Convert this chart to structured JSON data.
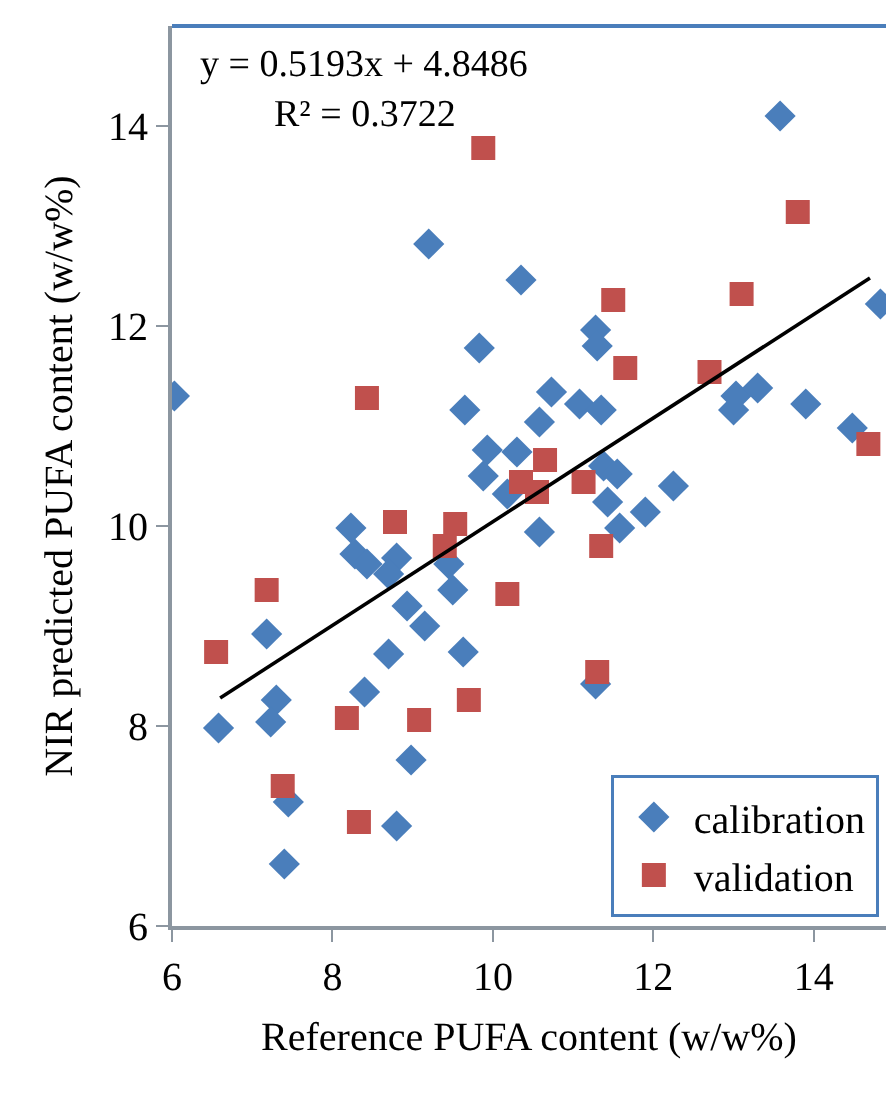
{
  "chart_data": {
    "type": "scatter",
    "xlabel": "Reference PUFA content (w/w%)",
    "ylabel": "NIR predicted PUFA content (w/w%)",
    "xlim": [
      6,
      14.9
    ],
    "ylim": [
      6,
      15
    ],
    "xticks": [
      6,
      8,
      10,
      12,
      14
    ],
    "yticks": [
      6,
      8,
      10,
      12,
      14
    ],
    "grid": false,
    "legend": "bottom right",
    "annotations": [
      "y = 0.5193x + 4.8486",
      "R² = 0.3722"
    ],
    "series": [
      {
        "name": "calibration",
        "color": "#4a7ebb",
        "marker": "diamond",
        "x": [
          13.58,
          9.2,
          10.35,
          14.83,
          11.28,
          9.83,
          11.3,
          6.03,
          10.73,
          11.08,
          11.35,
          9.65,
          13.03,
          13.3,
          13.0,
          13.9,
          14.48,
          10.58,
          9.93,
          10.3,
          9.88,
          10.18,
          11.38,
          11.55,
          11.43,
          12.25,
          11.9,
          11.58,
          10.58,
          8.23,
          8.28,
          8.43,
          8.8,
          8.7,
          9.45,
          8.93,
          9.5,
          9.15,
          7.18,
          8.7,
          9.63,
          7.3,
          8.4,
          11.28,
          6.58,
          7.23,
          8.98,
          7.45,
          8.8,
          7.4
        ],
        "values": [
          14.1,
          12.82,
          12.46,
          12.22,
          11.96,
          11.78,
          11.8,
          11.3,
          11.34,
          11.22,
          11.16,
          11.16,
          11.3,
          11.38,
          11.16,
          11.22,
          10.98,
          11.04,
          10.76,
          10.74,
          10.5,
          10.32,
          10.6,
          10.52,
          10.24,
          10.4,
          10.14,
          9.98,
          9.94,
          9.98,
          9.72,
          9.62,
          9.68,
          9.52,
          9.62,
          9.2,
          9.36,
          9.0,
          8.92,
          8.72,
          8.74,
          8.26,
          8.34,
          8.42,
          7.98,
          8.04,
          7.66,
          7.24,
          7.0,
          6.62
        ]
      },
      {
        "name": "validation",
        "color": "#c0504d",
        "marker": "square",
        "x": [
          9.88,
          13.8,
          11.5,
          13.1,
          11.65,
          12.7,
          14.68,
          8.43,
          10.65,
          10.35,
          10.55,
          11.13,
          8.78,
          9.53,
          9.4,
          11.35,
          10.18,
          7.18,
          6.55,
          11.3,
          8.18,
          9.08,
          9.7,
          7.38,
          8.33
        ],
        "values": [
          13.78,
          13.14,
          12.26,
          12.32,
          11.58,
          11.54,
          10.82,
          11.28,
          10.66,
          10.44,
          10.34,
          10.44,
          10.04,
          10.02,
          9.8,
          9.8,
          9.32,
          9.36,
          8.74,
          8.54,
          8.08,
          8.06,
          8.26,
          7.4,
          7.04
        ]
      },
      {
        "type": "line",
        "color": "#000000",
        "marker": "none",
        "line_style": "solid",
        "x": [
          6.6,
          14.7
        ],
        "values": [
          8.28,
          12.48
        ]
      }
    ]
  }
}
